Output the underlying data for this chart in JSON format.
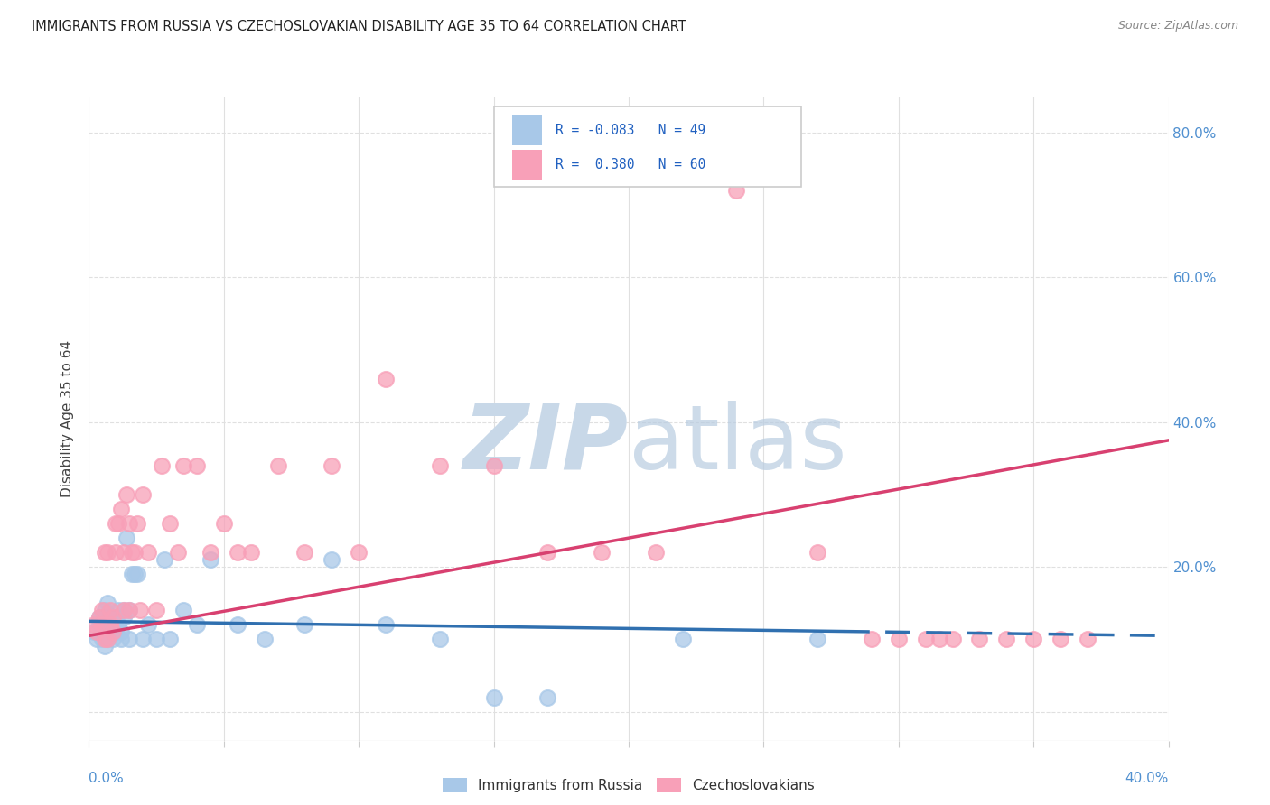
{
  "title": "IMMIGRANTS FROM RUSSIA VS CZECHOSLOVAKIAN DISABILITY AGE 35 TO 64 CORRELATION CHART",
  "source": "Source: ZipAtlas.com",
  "ylabel": "Disability Age 35 to 64",
  "xlim": [
    0.0,
    0.4
  ],
  "ylim": [
    -0.04,
    0.85
  ],
  "russia_R": -0.083,
  "russia_N": 49,
  "czech_R": 0.38,
  "czech_N": 60,
  "russia_color": "#a8c8e8",
  "russia_line_color": "#3070b0",
  "czech_color": "#f8a0b8",
  "czech_line_color": "#d84070",
  "background_color": "#ffffff",
  "watermark_color": "#c8d8e8",
  "legend_russia_label": "Immigrants from Russia",
  "legend_czech_label": "Czechoslovakians",
  "russia_x": [
    0.002,
    0.003,
    0.004,
    0.004,
    0.005,
    0.005,
    0.005,
    0.006,
    0.006,
    0.006,
    0.007,
    0.007,
    0.007,
    0.008,
    0.008,
    0.009,
    0.009,
    0.01,
    0.01,
    0.011,
    0.011,
    0.012,
    0.012,
    0.013,
    0.013,
    0.014,
    0.015,
    0.015,
    0.016,
    0.017,
    0.018,
    0.02,
    0.022,
    0.025,
    0.028,
    0.03,
    0.035,
    0.04,
    0.045,
    0.055,
    0.065,
    0.08,
    0.09,
    0.11,
    0.13,
    0.15,
    0.17,
    0.22,
    0.27
  ],
  "russia_y": [
    0.11,
    0.1,
    0.12,
    0.13,
    0.1,
    0.11,
    0.13,
    0.09,
    0.12,
    0.14,
    0.1,
    0.12,
    0.15,
    0.11,
    0.13,
    0.1,
    0.12,
    0.11,
    0.13,
    0.12,
    0.14,
    0.1,
    0.11,
    0.13,
    0.14,
    0.24,
    0.1,
    0.14,
    0.19,
    0.19,
    0.19,
    0.1,
    0.12,
    0.1,
    0.21,
    0.1,
    0.14,
    0.12,
    0.21,
    0.12,
    0.1,
    0.12,
    0.21,
    0.12,
    0.1,
    0.02,
    0.02,
    0.1,
    0.1
  ],
  "czech_x": [
    0.002,
    0.003,
    0.004,
    0.005,
    0.005,
    0.006,
    0.006,
    0.007,
    0.007,
    0.008,
    0.008,
    0.009,
    0.009,
    0.01,
    0.01,
    0.011,
    0.012,
    0.013,
    0.013,
    0.014,
    0.015,
    0.015,
    0.016,
    0.017,
    0.018,
    0.019,
    0.02,
    0.022,
    0.025,
    0.027,
    0.03,
    0.033,
    0.035,
    0.04,
    0.045,
    0.05,
    0.055,
    0.06,
    0.07,
    0.08,
    0.09,
    0.1,
    0.11,
    0.13,
    0.15,
    0.17,
    0.19,
    0.21,
    0.24,
    0.27,
    0.29,
    0.3,
    0.31,
    0.315,
    0.32,
    0.33,
    0.34,
    0.35,
    0.36,
    0.37
  ],
  "czech_y": [
    0.12,
    0.11,
    0.13,
    0.12,
    0.14,
    0.1,
    0.22,
    0.1,
    0.22,
    0.12,
    0.14,
    0.11,
    0.13,
    0.22,
    0.26,
    0.26,
    0.28,
    0.22,
    0.14,
    0.3,
    0.14,
    0.26,
    0.22,
    0.22,
    0.26,
    0.14,
    0.3,
    0.22,
    0.14,
    0.34,
    0.26,
    0.22,
    0.34,
    0.34,
    0.22,
    0.26,
    0.22,
    0.22,
    0.34,
    0.22,
    0.34,
    0.22,
    0.46,
    0.34,
    0.34,
    0.22,
    0.22,
    0.22,
    0.72,
    0.22,
    0.1,
    0.1,
    0.1,
    0.1,
    0.1,
    0.1,
    0.1,
    0.1,
    0.1,
    0.1
  ],
  "russia_line_x0": 0.0,
  "russia_line_x1": 0.4,
  "russia_line_y0": 0.125,
  "russia_line_y1": 0.105,
  "czech_line_x0": 0.0,
  "czech_line_x1": 0.4,
  "czech_line_y0": 0.105,
  "czech_line_y1": 0.375,
  "ytick_vals": [
    0.0,
    0.2,
    0.4,
    0.6,
    0.8
  ],
  "ytick_labels": [
    "",
    "20.0%",
    "40.0%",
    "60.0%",
    "80.0%"
  ],
  "grid_color": "#e0e0e0",
  "axis_label_color": "#5090d0",
  "title_color": "#222222",
  "source_color": "#888888",
  "legend_text_color": "#2060c0"
}
